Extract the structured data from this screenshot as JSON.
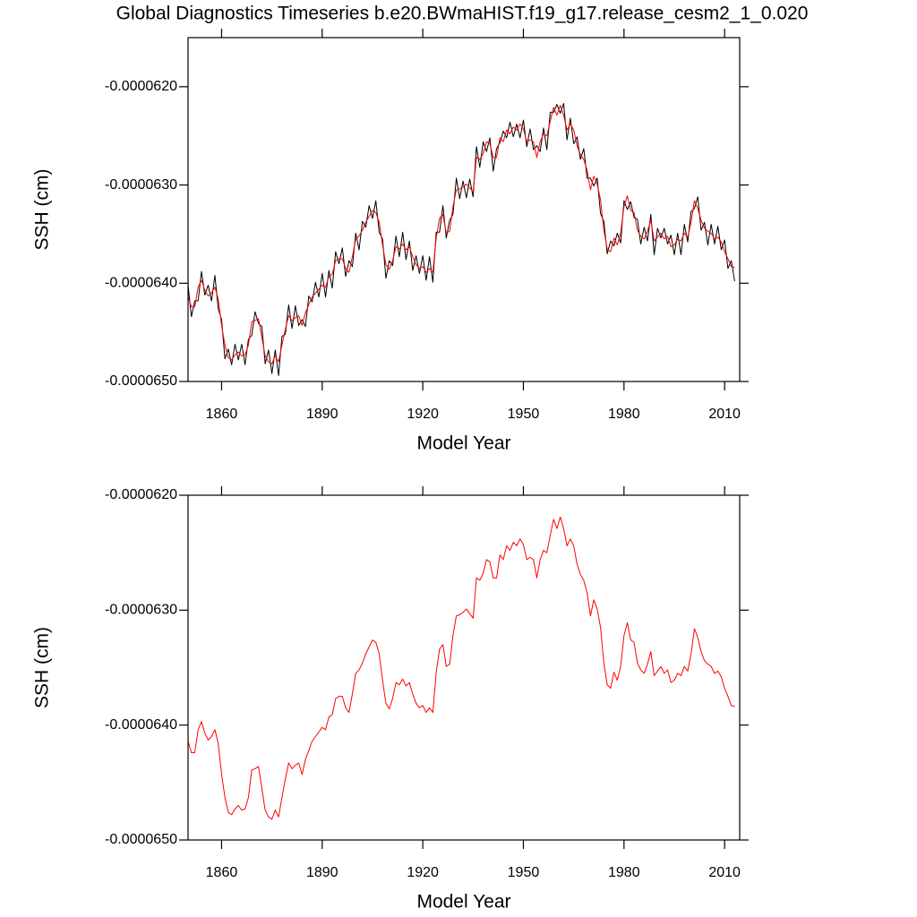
{
  "chart_data": [
    {
      "type": "line",
      "title": "Global Diagnostics Timeseries b.e20.BWmaHIST.f19_g17.release_cesm2_1_0.020",
      "xlabel": "Model Year",
      "ylabel": "SSH (cm)",
      "xlim": [
        1850,
        2014.5
      ],
      "xticks": [
        1860,
        1890,
        1920,
        1950,
        1980,
        2010
      ],
      "ylim": [
        -6.5e-05,
        -6.15e-05
      ],
      "yticks": [
        {
          "value": -6.2e-05,
          "label": "-0.0000620"
        },
        {
          "value": -6.3e-05,
          "label": "-0.0000630"
        },
        {
          "value": -6.4e-05,
          "label": "-0.0000640"
        },
        {
          "value": -6.5e-05,
          "label": "-0.0000650"
        }
      ],
      "x": [
        1850,
        1851,
        1852,
        1853,
        1854,
        1855,
        1856,
        1857,
        1858,
        1859,
        1860,
        1861,
        1862,
        1863,
        1864,
        1865,
        1866,
        1867,
        1868,
        1869,
        1870,
        1871,
        1872,
        1873,
        1874,
        1875,
        1876,
        1877,
        1878,
        1879,
        1880,
        1881,
        1882,
        1883,
        1884,
        1885,
        1886,
        1887,
        1888,
        1889,
        1890,
        1891,
        1892,
        1893,
        1894,
        1895,
        1896,
        1897,
        1898,
        1899,
        1900,
        1901,
        1902,
        1903,
        1904,
        1905,
        1906,
        1907,
        1908,
        1909,
        1910,
        1911,
        1912,
        1913,
        1914,
        1915,
        1916,
        1917,
        1918,
        1919,
        1920,
        1921,
        1922,
        1923,
        1924,
        1925,
        1926,
        1927,
        1928,
        1929,
        1930,
        1931,
        1932,
        1933,
        1934,
        1935,
        1936,
        1937,
        1938,
        1939,
        1940,
        1941,
        1942,
        1943,
        1944,
        1945,
        1946,
        1947,
        1948,
        1949,
        1950,
        1951,
        1952,
        1953,
        1954,
        1955,
        1956,
        1957,
        1958,
        1959,
        1960,
        1961,
        1962,
        1963,
        1964,
        1965,
        1966,
        1967,
        1968,
        1969,
        1970,
        1971,
        1972,
        1973,
        1974,
        1975,
        1976,
        1977,
        1978,
        1979,
        1980,
        1981,
        1982,
        1983,
        1984,
        1985,
        1986,
        1987,
        1988,
        1989,
        1990,
        1991,
        1992,
        1993,
        1994,
        1995,
        1996,
        1997,
        1998,
        1999,
        2000,
        2001,
        2002,
        2003,
        2004,
        2005,
        2006,
        2007,
        2008,
        2009,
        2010,
        2011,
        2012,
        2013
      ],
      "series": [
        {
          "color": "#000000",
          "values": [
            -6.402e-05,
            -6.434e-05,
            -6.418e-05,
            -6.418e-05,
            -6.388e-05,
            -6.412e-05,
            -6.402e-05,
            -6.418e-05,
            -6.392e-05,
            -6.426e-05,
            -6.437e-05,
            -6.477e-05,
            -6.467e-05,
            -6.483e-05,
            -6.462e-05,
            -6.478e-05,
            -6.462e-05,
            -6.483e-05,
            -6.457e-05,
            -6.453e-05,
            -6.429e-05,
            -6.441e-05,
            -6.444e-05,
            -6.482e-05,
            -6.468e-05,
            -6.492e-05,
            -6.468e-05,
            -6.494e-05,
            -6.454e-05,
            -6.452e-05,
            -6.422e-05,
            -6.446e-05,
            -6.423e-05,
            -6.443e-05,
            -6.437e-05,
            -6.444e-05,
            -6.413e-05,
            -6.419e-05,
            -6.399e-05,
            -6.414e-05,
            -6.39e-05,
            -6.414e-05,
            -6.387e-05,
            -6.405e-05,
            -6.368e-05,
            -6.38e-05,
            -6.364e-05,
            -6.393e-05,
            -6.377e-05,
            -6.383e-05,
            -6.349e-05,
            -6.366e-05,
            -6.337e-05,
            -6.343e-05,
            -6.321e-05,
            -6.334e-05,
            -6.316e-05,
            -6.348e-05,
            -6.355e-05,
            -6.395e-05,
            -6.377e-05,
            -6.382e-05,
            -6.352e-05,
            -6.373e-05,
            -6.348e-05,
            -6.376e-05,
            -6.357e-05,
            -6.387e-05,
            -6.372e-05,
            -6.39e-05,
            -6.372e-05,
            -6.397e-05,
            -6.373e-05,
            -6.399e-05,
            -6.348e-05,
            -6.348e-05,
            -6.321e-05,
            -6.354e-05,
            -6.336e-05,
            -6.33e-05,
            -6.293e-05,
            -6.314e-05,
            -6.296e-05,
            -6.313e-05,
            -6.294e-05,
            -6.312e-05,
            -6.261e-05,
            -6.282e-05,
            -6.256e-05,
            -6.266e-05,
            -6.252e-05,
            -6.286e-05,
            -6.263e-05,
            -6.257e-05,
            -6.245e-05,
            -6.252e-05,
            -6.236e-05,
            -6.251e-05,
            -6.238e-05,
            -6.252e-05,
            -6.234e-05,
            -6.261e-05,
            -6.243e-05,
            -6.264e-05,
            -6.26e-05,
            -6.266e-05,
            -6.242e-05,
            -6.264e-05,
            -6.226e-05,
            -6.226e-05,
            -6.218e-05,
            -6.227e-05,
            -6.217e-05,
            -6.254e-05,
            -6.232e-05,
            -6.258e-05,
            -6.251e-05,
            -6.274e-05,
            -6.263e-05,
            -6.293e-05,
            -6.293e-05,
            -6.301e-05,
            -6.293e-05,
            -6.329e-05,
            -6.337e-05,
            -6.37e-05,
            -6.357e-05,
            -6.362e-05,
            -6.349e-05,
            -6.359e-05,
            -6.316e-05,
            -6.325e-05,
            -6.317e-05,
            -6.333e-05,
            -6.335e-05,
            -6.36e-05,
            -6.343e-05,
            -6.357e-05,
            -6.33e-05,
            -6.371e-05,
            -6.344e-05,
            -6.354e-05,
            -6.344e-05,
            -6.36e-05,
            -6.351e-05,
            -6.371e-05,
            -6.349e-05,
            -6.371e-05,
            -6.34e-05,
            -6.358e-05,
            -6.327e-05,
            -6.324e-05,
            -6.312e-05,
            -6.346e-05,
            -6.338e-05,
            -6.361e-05,
            -6.34e-05,
            -6.36e-05,
            -6.342e-05,
            -6.366e-05,
            -6.356e-05,
            -6.385e-05,
            -6.377e-05,
            -6.398e-05
          ]
        },
        {
          "color": "#ff0000",
          "values": [
            -6.414e-05,
            -6.424e-05,
            -6.424e-05,
            -6.404e-05,
            -6.397e-05,
            -6.407e-05,
            -6.413e-05,
            -6.41e-05,
            -6.404e-05,
            -6.416e-05,
            -6.443e-05,
            -6.463e-05,
            -6.476e-05,
            -6.478e-05,
            -6.473e-05,
            -6.47e-05,
            -6.474e-05,
            -6.473e-05,
            -6.463e-05,
            -6.439e-05,
            -6.438e-05,
            -6.436e-05,
            -6.455e-05,
            -6.474e-05,
            -6.48e-05,
            -6.482e-05,
            -6.474e-05,
            -6.48e-05,
            -6.463e-05,
            -6.447e-05,
            -6.433e-05,
            -6.438e-05,
            -6.435e-05,
            -6.433e-05,
            -6.443e-05,
            -6.43e-05,
            -6.422e-05,
            -6.414e-05,
            -6.41e-05,
            -6.406e-05,
            -6.402e-05,
            -6.404e-05,
            -6.393e-05,
            -6.391e-05,
            -6.377e-05,
            -6.375e-05,
            -6.375e-05,
            -6.385e-05,
            -6.389e-05,
            -6.373e-05,
            -6.355e-05,
            -6.352e-05,
            -6.346e-05,
            -6.338e-05,
            -6.332e-05,
            -6.326e-05,
            -6.328e-05,
            -6.338e-05,
            -6.361e-05,
            -6.381e-05,
            -6.386e-05,
            -6.377e-05,
            -6.363e-05,
            -6.365e-05,
            -6.36e-05,
            -6.366e-05,
            -6.363e-05,
            -6.373e-05,
            -6.381e-05,
            -6.385e-05,
            -6.383e-05,
            -6.389e-05,
            -6.385e-05,
            -6.389e-05,
            -6.354e-05,
            -6.334e-05,
            -6.33e-05,
            -6.349e-05,
            -6.347e-05,
            -6.322e-05,
            -6.305e-05,
            -6.304e-05,
            -6.302e-05,
            -6.299e-05,
            -6.303e-05,
            -6.307e-05,
            -6.272e-05,
            -6.274e-05,
            -6.268e-05,
            -6.256e-05,
            -6.258e-05,
            -6.272e-05,
            -6.272e-05,
            -6.252e-05,
            -6.256e-05,
            -6.244e-05,
            -6.248e-05,
            -6.241e-05,
            -6.244e-05,
            -6.238e-05,
            -6.243e-05,
            -6.256e-05,
            -6.254e-05,
            -6.256e-05,
            -6.272e-05,
            -6.256e-05,
            -6.248e-05,
            -6.25e-05,
            -6.235e-05,
            -6.221e-05,
            -6.229e-05,
            -6.219e-05,
            -6.229e-05,
            -6.244e-05,
            -6.238e-05,
            -6.244e-05,
            -6.26e-05,
            -6.269e-05,
            -6.274e-05,
            -6.285e-05,
            -6.305e-05,
            -6.291e-05,
            -6.299e-05,
            -6.315e-05,
            -6.346e-05,
            -6.365e-05,
            -6.368e-05,
            -6.354e-05,
            -6.361e-05,
            -6.349e-05,
            -6.322e-05,
            -6.311e-05,
            -6.326e-05,
            -6.328e-05,
            -6.346e-05,
            -6.352e-05,
            -6.355e-05,
            -6.347e-05,
            -6.336e-05,
            -6.357e-05,
            -6.353e-05,
            -6.349e-05,
            -6.355e-05,
            -6.352e-05,
            -6.363e-05,
            -6.361e-05,
            -6.355e-05,
            -6.357e-05,
            -6.349e-05,
            -6.353e-05,
            -6.338e-05,
            -6.316e-05,
            -6.324e-05,
            -6.336e-05,
            -6.344e-05,
            -6.347e-05,
            -6.349e-05,
            -6.355e-05,
            -6.353e-05,
            -6.358e-05,
            -6.368e-05,
            -6.375e-05,
            -6.383e-05,
            -6.384e-05
          ]
        }
      ]
    },
    {
      "type": "line",
      "xlabel": "Model Year",
      "ylabel": "SSH (cm)",
      "xlim": [
        1850,
        2014.5
      ],
      "xticks": [
        1860,
        1890,
        1920,
        1950,
        1980,
        2010
      ],
      "ylim": [
        -6.5e-05,
        -6.2e-05
      ],
      "yticks": [
        {
          "value": -6.2e-05,
          "label": "-0.0000620"
        },
        {
          "value": -6.3e-05,
          "label": "-0.0000630"
        },
        {
          "value": -6.4e-05,
          "label": "-0.0000640"
        },
        {
          "value": -6.5e-05,
          "label": "-0.0000650"
        }
      ],
      "x": [
        1850,
        1851,
        1852,
        1853,
        1854,
        1855,
        1856,
        1857,
        1858,
        1859,
        1860,
        1861,
        1862,
        1863,
        1864,
        1865,
        1866,
        1867,
        1868,
        1869,
        1870,
        1871,
        1872,
        1873,
        1874,
        1875,
        1876,
        1877,
        1878,
        1879,
        1880,
        1881,
        1882,
        1883,
        1884,
        1885,
        1886,
        1887,
        1888,
        1889,
        1890,
        1891,
        1892,
        1893,
        1894,
        1895,
        1896,
        1897,
        1898,
        1899,
        1900,
        1901,
        1902,
        1903,
        1904,
        1905,
        1906,
        1907,
        1908,
        1909,
        1910,
        1911,
        1912,
        1913,
        1914,
        1915,
        1916,
        1917,
        1918,
        1919,
        1920,
        1921,
        1922,
        1923,
        1924,
        1925,
        1926,
        1927,
        1928,
        1929,
        1930,
        1931,
        1932,
        1933,
        1934,
        1935,
        1936,
        1937,
        1938,
        1939,
        1940,
        1941,
        1942,
        1943,
        1944,
        1945,
        1946,
        1947,
        1948,
        1949,
        1950,
        1951,
        1952,
        1953,
        1954,
        1955,
        1956,
        1957,
        1958,
        1959,
        1960,
        1961,
        1962,
        1963,
        1964,
        1965,
        1966,
        1967,
        1968,
        1969,
        1970,
        1971,
        1972,
        1973,
        1974,
        1975,
        1976,
        1977,
        1978,
        1979,
        1980,
        1981,
        1982,
        1983,
        1984,
        1985,
        1986,
        1987,
        1988,
        1989,
        1990,
        1991,
        1992,
        1993,
        1994,
        1995,
        1996,
        1997,
        1998,
        1999,
        2000,
        2001,
        2002,
        2003,
        2004,
        2005,
        2006,
        2007,
        2008,
        2009,
        2010,
        2011,
        2012,
        2013
      ],
      "series": [
        {
          "color": "#ff0000",
          "values": [
            -6.414e-05,
            -6.424e-05,
            -6.424e-05,
            -6.404e-05,
            -6.397e-05,
            -6.407e-05,
            -6.413e-05,
            -6.41e-05,
            -6.404e-05,
            -6.416e-05,
            -6.443e-05,
            -6.463e-05,
            -6.476e-05,
            -6.478e-05,
            -6.473e-05,
            -6.47e-05,
            -6.474e-05,
            -6.473e-05,
            -6.463e-05,
            -6.439e-05,
            -6.438e-05,
            -6.436e-05,
            -6.455e-05,
            -6.474e-05,
            -6.48e-05,
            -6.482e-05,
            -6.474e-05,
            -6.48e-05,
            -6.463e-05,
            -6.447e-05,
            -6.433e-05,
            -6.438e-05,
            -6.435e-05,
            -6.433e-05,
            -6.443e-05,
            -6.43e-05,
            -6.422e-05,
            -6.414e-05,
            -6.41e-05,
            -6.406e-05,
            -6.402e-05,
            -6.404e-05,
            -6.393e-05,
            -6.391e-05,
            -6.377e-05,
            -6.375e-05,
            -6.375e-05,
            -6.385e-05,
            -6.389e-05,
            -6.373e-05,
            -6.355e-05,
            -6.352e-05,
            -6.346e-05,
            -6.338e-05,
            -6.332e-05,
            -6.326e-05,
            -6.328e-05,
            -6.338e-05,
            -6.361e-05,
            -6.381e-05,
            -6.386e-05,
            -6.377e-05,
            -6.363e-05,
            -6.365e-05,
            -6.36e-05,
            -6.366e-05,
            -6.363e-05,
            -6.373e-05,
            -6.381e-05,
            -6.385e-05,
            -6.383e-05,
            -6.389e-05,
            -6.385e-05,
            -6.389e-05,
            -6.354e-05,
            -6.334e-05,
            -6.33e-05,
            -6.349e-05,
            -6.347e-05,
            -6.322e-05,
            -6.305e-05,
            -6.304e-05,
            -6.302e-05,
            -6.299e-05,
            -6.303e-05,
            -6.307e-05,
            -6.272e-05,
            -6.274e-05,
            -6.268e-05,
            -6.256e-05,
            -6.258e-05,
            -6.272e-05,
            -6.272e-05,
            -6.252e-05,
            -6.256e-05,
            -6.244e-05,
            -6.248e-05,
            -6.241e-05,
            -6.244e-05,
            -6.238e-05,
            -6.243e-05,
            -6.256e-05,
            -6.254e-05,
            -6.256e-05,
            -6.272e-05,
            -6.256e-05,
            -6.248e-05,
            -6.25e-05,
            -6.235e-05,
            -6.221e-05,
            -6.229e-05,
            -6.219e-05,
            -6.229e-05,
            -6.244e-05,
            -6.238e-05,
            -6.244e-05,
            -6.26e-05,
            -6.269e-05,
            -6.274e-05,
            -6.285e-05,
            -6.305e-05,
            -6.291e-05,
            -6.299e-05,
            -6.315e-05,
            -6.346e-05,
            -6.365e-05,
            -6.368e-05,
            -6.354e-05,
            -6.361e-05,
            -6.349e-05,
            -6.322e-05,
            -6.311e-05,
            -6.326e-05,
            -6.328e-05,
            -6.346e-05,
            -6.352e-05,
            -6.355e-05,
            -6.347e-05,
            -6.336e-05,
            -6.357e-05,
            -6.353e-05,
            -6.349e-05,
            -6.355e-05,
            -6.352e-05,
            -6.363e-05,
            -6.361e-05,
            -6.355e-05,
            -6.357e-05,
            -6.349e-05,
            -6.353e-05,
            -6.338e-05,
            -6.316e-05,
            -6.324e-05,
            -6.336e-05,
            -6.344e-05,
            -6.347e-05,
            -6.349e-05,
            -6.355e-05,
            -6.353e-05,
            -6.358e-05,
            -6.368e-05,
            -6.375e-05,
            -6.383e-05,
            -6.384e-05
          ]
        }
      ]
    }
  ]
}
